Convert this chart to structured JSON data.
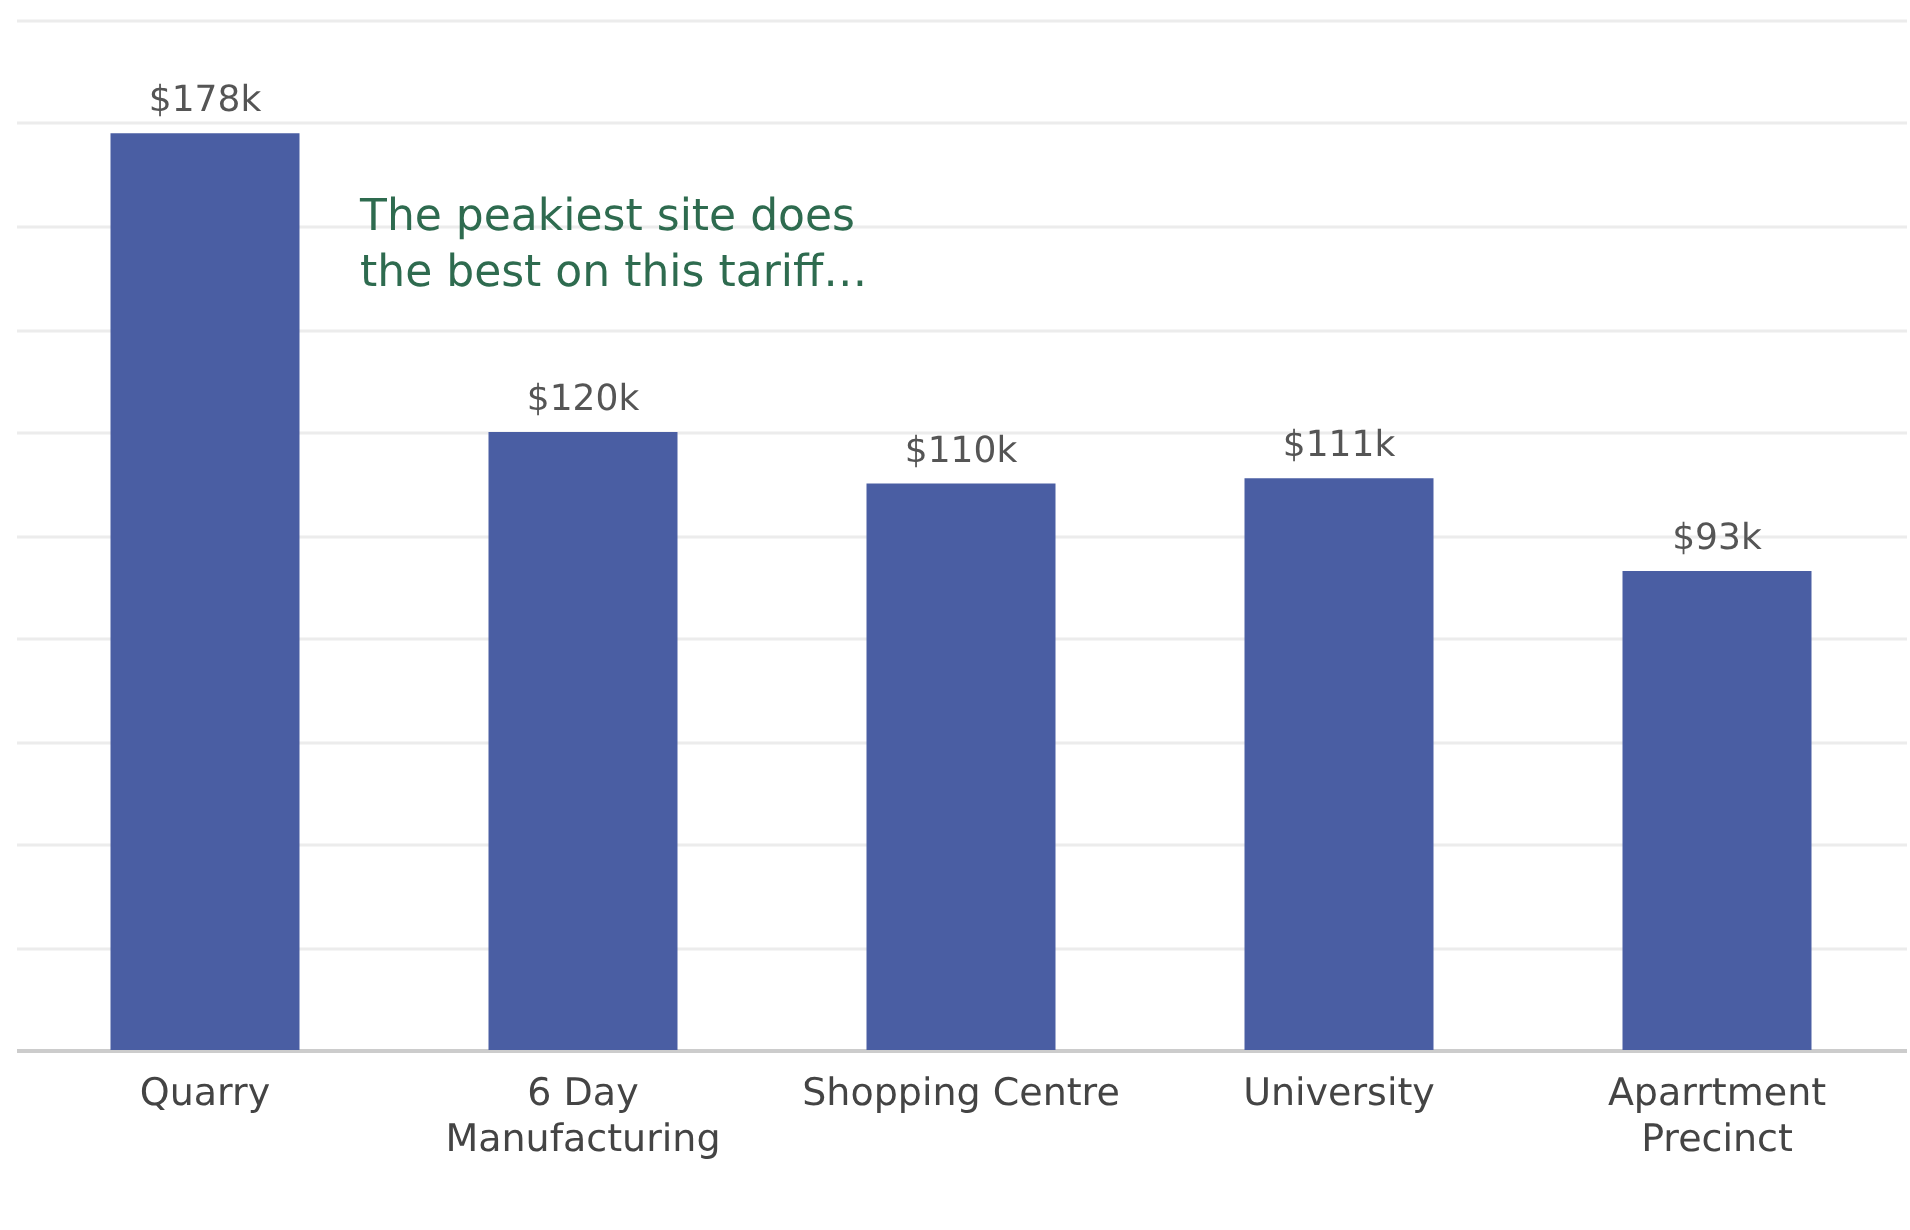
{
  "chart_data": {
    "type": "bar",
    "categories": [
      "Quarry",
      "6 Day Manufacturing",
      "Shopping Centre",
      "University",
      "Aparrtment Precinct"
    ],
    "values": [
      178,
      120,
      110,
      111,
      93
    ],
    "value_labels": [
      "$178k",
      "$120k",
      "$110k",
      "$111k",
      "$93k"
    ],
    "color": "#4a5ea3",
    "ylim": [
      0,
      200
    ],
    "yticks": [
      {
        "value": 0,
        "label": null
      },
      {
        "value": 20,
        "label": null
      },
      {
        "value": 40,
        "label": null
      },
      {
        "value": 60,
        "label": null
      },
      {
        "value": 80,
        "label": null
      },
      {
        "value": 100,
        "label": null
      },
      {
        "value": 120,
        "label": null
      },
      {
        "value": 140,
        "label": null
      },
      {
        "value": 160,
        "label": null
      },
      {
        "value": 180,
        "label": null
      },
      {
        "value": 200,
        "label": null
      }
    ],
    "grid": "y",
    "tick_labels": "x",
    "annotations": [
      "The peakiest site does the best on this tariff…"
    ]
  }
}
